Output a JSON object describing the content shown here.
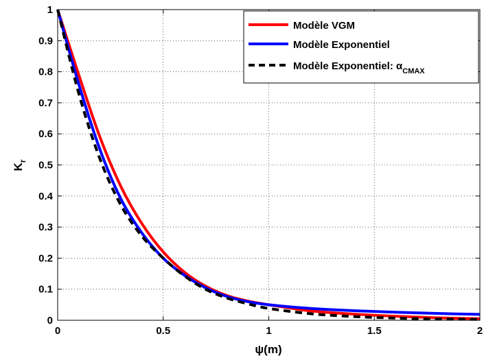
{
  "chart_data": {
    "type": "line",
    "xlabel": "ψ(m)",
    "ylabel": {
      "main": "K",
      "sub": "r"
    },
    "xlim": [
      0,
      2
    ],
    "ylim": [
      0,
      1
    ],
    "xticks": [
      0,
      0.5,
      1,
      1.5,
      2
    ],
    "xtick_labels": [
      "0",
      "0.5",
      "1",
      "1.5",
      "2"
    ],
    "yticks": [
      0,
      0.1,
      0.2,
      0.3,
      0.4,
      0.5,
      0.6,
      0.7,
      0.8,
      0.9,
      1
    ],
    "ytick_labels": [
      "0",
      "0.1",
      "0.2",
      "0.3",
      "0.4",
      "0.5",
      "0.6",
      "0.7",
      "0.8",
      "0.9",
      "1"
    ],
    "grid": true,
    "legend_position": "top-right",
    "series": [
      {
        "name": "Modèle VGM",
        "color": "#ff0000",
        "style": "solid",
        "x": [
          0,
          0.1,
          0.2,
          0.3,
          0.4,
          0.5,
          0.6,
          0.7,
          0.8,
          0.9,
          1.0,
          1.2,
          1.4,
          1.6,
          1.8,
          2.0
        ],
        "y": [
          1.0,
          0.79,
          0.59,
          0.43,
          0.31,
          0.22,
          0.155,
          0.11,
          0.08,
          0.062,
          0.05,
          0.03,
          0.02,
          0.013,
          0.008,
          0.005
        ]
      },
      {
        "name": "Modèle Exponentiel",
        "color": "#0000ff",
        "style": "solid",
        "x": [
          0,
          0.1,
          0.2,
          0.3,
          0.4,
          0.5,
          0.6,
          0.7,
          0.8,
          0.9,
          1.0,
          1.2,
          1.4,
          1.6,
          1.8,
          2.0
        ],
        "y": [
          1.0,
          0.76,
          0.55,
          0.39,
          0.28,
          0.2,
          0.145,
          0.105,
          0.077,
          0.06,
          0.05,
          0.038,
          0.031,
          0.026,
          0.022,
          0.019
        ]
      },
      {
        "name": "Modèle Exponentiel: α",
        "name_subscript": "CMAX",
        "color": "#000000",
        "style": "dashed",
        "x": [
          0,
          0.1,
          0.2,
          0.3,
          0.4,
          0.5,
          0.6,
          0.7,
          0.8,
          0.9,
          1.0,
          1.2,
          1.4,
          1.6,
          1.8,
          2.0
        ],
        "y": [
          1.0,
          0.73,
          0.52,
          0.37,
          0.27,
          0.2,
          0.143,
          0.1,
          0.072,
          0.053,
          0.038,
          0.021,
          0.012,
          0.007,
          0.004,
          0.003
        ]
      }
    ]
  }
}
